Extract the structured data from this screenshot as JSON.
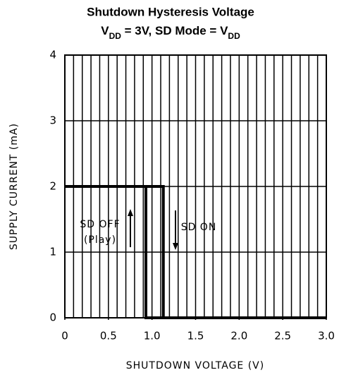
{
  "chart_data": {
    "type": "line",
    "title": "Shutdown Hysteresis Voltage",
    "subtitle": [
      "V",
      "DD",
      " = 3V, SD Mode = V",
      "DD"
    ],
    "xlabel": "SHUTDOWN VOLTAGE (V)",
    "ylabel": "SUPPLY CURRENT (mA)",
    "xlim": [
      0,
      3
    ],
    "ylim": [
      0,
      4
    ],
    "xticks": [
      0,
      0.5,
      {
        "value": 1,
        "label": "1.0"
      },
      1.5,
      {
        "value": 2,
        "label": "2.0"
      },
      2.5,
      {
        "value": 3,
        "label": "3.0"
      }
    ],
    "yticks": [
      0,
      1,
      2,
      3,
      4
    ],
    "xgrid": [
      0,
      0.1,
      0.2,
      0.3,
      0.4,
      0.5,
      0.6,
      0.7,
      0.8,
      0.9,
      1,
      1.1,
      1.2,
      1.3,
      1.4,
      1.5,
      1.6,
      1.7,
      1.8,
      1.9,
      2,
      2.1,
      2.2,
      2.3,
      2.4,
      2.5,
      2.6,
      2.7,
      2.8,
      2.9,
      3
    ],
    "grid": true,
    "series": [
      {
        "color": "#000000",
        "x": [
          0,
          1.13,
          1.13,
          3.0
        ],
        "values": [
          2,
          2,
          0,
          0
        ]
      },
      {
        "color": "#000000",
        "x": [
          0,
          0.93,
          0.93,
          3.0
        ],
        "values": [
          2,
          2,
          0,
          0
        ]
      }
    ],
    "annotations": [
      "SD OFF",
      "(Play)",
      "SD ON"
    ]
  }
}
